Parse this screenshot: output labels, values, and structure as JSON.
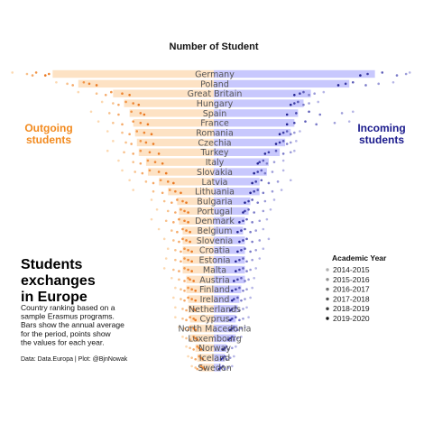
{
  "chart_data": {
    "type": "bar",
    "title": "Number of Student",
    "left_label": "Outgoing\nstudents",
    "right_label": "Incoming\nstudents",
    "value_max": 1,
    "categories": [
      "Germany",
      "Poland",
      "Great Britain",
      "Hungary",
      "Spain",
      "France",
      "Romania",
      "Czechia",
      "Turkey",
      "Italy",
      "Slovakia",
      "Latvia",
      "Lithuania",
      "Bulgaria",
      "Portugal",
      "Denmark",
      "Belgium",
      "Slovenia",
      "Croatia",
      "Estonia",
      "Malta",
      "Austria",
      "Finland",
      "Ireland",
      "Netherlands",
      "Cyprus",
      "North Macedonia",
      "Luxembourg",
      "Norway",
      "Iceland",
      "Sweden"
    ],
    "outgoing_avg": [
      0.88,
      0.74,
      0.55,
      0.49,
      0.46,
      0.44,
      0.43,
      0.42,
      0.41,
      0.37,
      0.36,
      0.3,
      0.25,
      0.2,
      0.19,
      0.19,
      0.17,
      0.17,
      0.17,
      0.17,
      0.17,
      0.15,
      0.15,
      0.14,
      0.14,
      0.13,
      0.13,
      0.13,
      0.1,
      0.09,
      0.08
    ],
    "incoming_avg": [
      0.88,
      0.74,
      0.53,
      0.49,
      0.46,
      0.44,
      0.42,
      0.39,
      0.36,
      0.3,
      0.29,
      0.25,
      0.25,
      0.2,
      0.19,
      0.17,
      0.16,
      0.17,
      0.17,
      0.17,
      0.17,
      0.17,
      0.15,
      0.14,
      0.13,
      0.12,
      0.13,
      0.12,
      0.07,
      0.06,
      0.04
    ],
    "years": [
      "2014-2015",
      "2015-2016",
      "2016-2017",
      "2017-2018",
      "2018-2019",
      "2019-2020"
    ],
    "outgoing_points": [
      [
        1.1,
        1.02,
        0.99,
        0.97,
        0.9,
        0.92
      ],
      [
        0.86,
        0.8,
        0.77,
        0.71,
        0.68,
        0.64
      ],
      [
        0.74,
        0.64,
        0.59,
        0.56,
        0.5,
        0.46
      ],
      [
        0.61,
        0.55,
        0.52,
        0.48,
        0.44,
        0.41
      ],
      [
        0.67,
        0.57,
        0.52,
        0.45,
        0.4,
        0.38
      ],
      [
        0.63,
        0.55,
        0.5,
        0.44,
        0.4,
        0.36
      ],
      [
        0.58,
        0.5,
        0.46,
        0.42,
        0.38,
        0.34
      ],
      [
        0.55,
        0.48,
        0.45,
        0.4,
        0.37,
        0.33
      ],
      [
        0.58,
        0.49,
        0.44,
        0.4,
        0.35,
        0.3
      ],
      [
        0.52,
        0.44,
        0.4,
        0.36,
        0.32,
        0.28
      ],
      [
        0.5,
        0.43,
        0.39,
        0.35,
        0.3,
        0.26
      ],
      [
        0.46,
        0.37,
        0.33,
        0.29,
        0.25,
        0.22
      ],
      [
        0.44,
        0.33,
        0.28,
        0.24,
        0.21,
        0.18
      ],
      [
        0.34,
        0.27,
        0.23,
        0.2,
        0.17,
        0.15
      ],
      [
        0.31,
        0.25,
        0.21,
        0.18,
        0.16,
        0.14
      ],
      [
        0.34,
        0.26,
        0.22,
        0.19,
        0.16,
        0.14
      ],
      [
        0.3,
        0.23,
        0.2,
        0.17,
        0.15,
        0.13
      ],
      [
        0.27,
        0.22,
        0.19,
        0.17,
        0.15,
        0.13
      ],
      [
        0.25,
        0.21,
        0.18,
        0.16,
        0.14,
        0.12
      ],
      [
        0.26,
        0.21,
        0.18,
        0.16,
        0.14,
        0.12
      ],
      [
        0.27,
        0.22,
        0.19,
        0.16,
        0.14,
        0.12
      ],
      [
        0.23,
        0.19,
        0.16,
        0.14,
        0.13,
        0.11
      ],
      [
        0.21,
        0.18,
        0.16,
        0.14,
        0.12,
        0.1
      ],
      [
        0.22,
        0.18,
        0.16,
        0.14,
        0.12,
        0.1
      ],
      [
        0.21,
        0.17,
        0.15,
        0.13,
        0.11,
        0.1
      ],
      [
        0.21,
        0.17,
        0.15,
        0.13,
        0.11,
        0.1
      ],
      [
        0.19,
        0.16,
        0.14,
        0.13,
        0.11,
        0.1
      ],
      [
        0.17,
        0.15,
        0.13,
        0.11,
        0.1,
        0.09
      ],
      [
        0.15,
        0.13,
        0.11,
        0.09,
        0.08,
        0.07
      ],
      [
        0.14,
        0.12,
        0.1,
        0.08,
        0.07,
        0.06
      ],
      [
        0.12,
        0.1,
        0.09,
        0.07,
        0.06,
        0.05
      ]
    ],
    "incoming_points": [
      [
        1.07,
        1.05,
        1.0,
        0.92,
        0.84,
        0.8
      ],
      [
        0.98,
        0.9,
        0.83,
        0.76,
        0.72,
        0.68
      ],
      [
        0.6,
        0.55,
        0.52,
        0.49,
        0.47,
        0.44
      ],
      [
        0.57,
        0.52,
        0.49,
        0.46,
        0.44,
        0.42
      ],
      [
        0.76,
        0.7,
        0.58,
        0.52,
        0.45,
        0.4
      ],
      [
        0.74,
        0.66,
        0.56,
        0.5,
        0.44,
        0.4
      ],
      [
        0.47,
        0.44,
        0.42,
        0.4,
        0.38,
        0.36
      ],
      [
        0.45,
        0.42,
        0.4,
        0.38,
        0.36,
        0.34
      ],
      [
        0.44,
        0.42,
        0.38,
        0.34,
        0.3,
        0.28
      ],
      [
        0.38,
        0.33,
        0.29,
        0.27,
        0.25,
        0.24
      ],
      [
        0.38,
        0.32,
        0.28,
        0.26,
        0.24,
        0.22
      ],
      [
        0.42,
        0.35,
        0.3,
        0.26,
        0.23,
        0.21
      ],
      [
        0.37,
        0.32,
        0.27,
        0.24,
        0.22,
        0.2
      ],
      [
        0.33,
        0.28,
        0.24,
        0.21,
        0.19,
        0.17
      ],
      [
        0.31,
        0.27,
        0.22,
        0.19,
        0.17,
        0.16
      ],
      [
        0.29,
        0.25,
        0.21,
        0.18,
        0.16,
        0.14
      ],
      [
        0.27,
        0.23,
        0.2,
        0.17,
        0.15,
        0.13
      ],
      [
        0.3,
        0.25,
        0.21,
        0.18,
        0.16,
        0.14
      ],
      [
        0.27,
        0.23,
        0.2,
        0.17,
        0.15,
        0.13
      ],
      [
        0.25,
        0.21,
        0.18,
        0.16,
        0.14,
        0.12
      ],
      [
        0.23,
        0.2,
        0.18,
        0.16,
        0.14,
        0.12
      ],
      [
        0.22,
        0.19,
        0.17,
        0.15,
        0.13,
        0.11
      ],
      [
        0.21,
        0.18,
        0.16,
        0.14,
        0.12,
        0.1
      ],
      [
        0.2,
        0.17,
        0.15,
        0.13,
        0.11,
        0.1
      ],
      [
        0.18,
        0.16,
        0.14,
        0.12,
        0.1,
        0.09
      ],
      [
        0.19,
        0.16,
        0.14,
        0.12,
        0.1,
        0.09
      ],
      [
        0.17,
        0.15,
        0.13,
        0.11,
        0.1,
        0.09
      ],
      [
        0.15,
        0.13,
        0.11,
        0.1,
        0.09,
        0.08
      ],
      [
        0.12,
        0.1,
        0.08,
        0.07,
        0.06,
        0.05
      ],
      [
        0.11,
        0.09,
        0.07,
        0.06,
        0.05,
        0.04
      ],
      [
        0.1,
        0.08,
        0.06,
        0.05,
        0.04,
        0.03
      ]
    ],
    "legend": {
      "title": "Academic Year",
      "placement": "right"
    },
    "colors": {
      "outgoing_bar": "#fde2c4",
      "incoming_bar": "#c8c8fd",
      "outgoing_text": "#f28a1e",
      "incoming_text": "#1a1a8c",
      "outgoing_points": [
        "#fcd8b0",
        "#f8c08a",
        "#f5a866",
        "#f29445",
        "#ee8430",
        "#ea7820"
      ],
      "incoming_points": [
        "#b5b5e6",
        "#9a9ad8",
        "#7a7ac8",
        "#5c5cb8",
        "#3e3ea6",
        "#222290"
      ],
      "legend_points": [
        "#b0b0b0",
        "#909090",
        "#707070",
        "#505050",
        "#353535",
        "#111111"
      ]
    },
    "grid": false
  },
  "annotations": {
    "main_title": "Students\nexchanges\nin Europe",
    "description": "Country ranking based on a\nsample Erasmus programs.\nBars show the annual average\nfor the period, points show\nthe values for each year.",
    "source": "Data: Data.Europa | Plot: @BjnNowak"
  }
}
